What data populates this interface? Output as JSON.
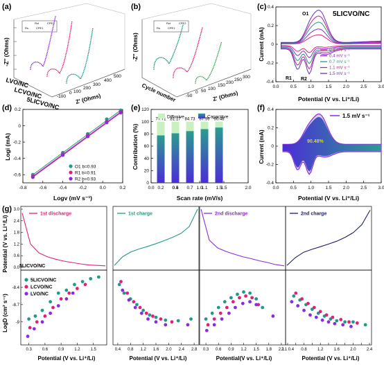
{
  "colors": {
    "pink": "#e0207a",
    "teal": "#1f9a8a",
    "purple": "#8a2be2",
    "navy": "#1c1c6b",
    "green": "#2ea84a",
    "diffusive": "#c8f0c0",
    "capacitive_top": "#2a9d8f",
    "capacitive_bottom": "#4b2dd6"
  },
  "panels": {
    "a": {
      "label": "(a)",
      "zlabel": "-Z'' (Ohms)",
      "xlabel": "Z' (Ohms)",
      "xticks": [
        "-100",
        "0",
        "100",
        "200",
        "300",
        "400",
        "500"
      ],
      "series": [
        "LVO/NC",
        "LCVO/NC",
        "5LICVO/NC"
      ],
      "circuit": [
        "Rs",
        "Rct",
        "CPE1",
        "CPE2"
      ]
    },
    "b": {
      "label": "(b)",
      "zlabel": "-Z'' (Ohms)",
      "xlabel": "Z' (Ohms)",
      "ylabel": "Cycle number",
      "xticks": [
        "-50",
        "0",
        "50",
        "100",
        "150",
        "200",
        "250",
        "300"
      ],
      "circuit": [
        "Rs",
        "Rct",
        "CPE1",
        "CPE2"
      ]
    },
    "c": {
      "label": "(c)",
      "tag": "5LICVO/NC",
      "ylabel": "Current (mA)",
      "xlabel": "Potential (V vs. Li⁺/Li)",
      "peaks": [
        "O1",
        "R1",
        "R2"
      ],
      "legend": [
        "0.2 mV s⁻¹",
        "0.4 mV s⁻¹",
        "0.7 mV s⁻¹",
        "1.1 mV s⁻¹",
        "1.5 mV s⁻¹"
      ]
    },
    "d": {
      "label": "(d)",
      "ylabel": "Logi (mA)",
      "xlabel": "Logv (mV s⁻¹)",
      "legend": [
        "O1  b=0.93",
        "R1  b=0.91",
        "R2  b=0.93"
      ]
    },
    "e": {
      "label": "(e)",
      "ylabel": "Contribution (%)",
      "xlabel": "Scan rate (mV/s)",
      "legend": [
        "Diffusive",
        "Capacitive"
      ]
    },
    "f": {
      "label": "(f)",
      "ylabel": "Current (mA)",
      "xlabel": "Potential (V vs. Li⁺/Li)",
      "legend": "1.5 mV s⁻¹",
      "percent": "90.48%"
    },
    "g": {
      "label": "(g)",
      "titles": [
        "1st discharge",
        "1st charge",
        "2nd discharge",
        "2nd charge"
      ],
      "top_ylabel": "Potential (V vs. Li⁺/Li)",
      "bottom_ylabel": "LogD (cm² s⁻¹)",
      "sample": "5LICVO/NC",
      "legend": [
        "5LICVO/NC",
        "LCVO/NC",
        "LVO/NC"
      ],
      "xlabels": [
        "Potential (V vs. Li⁺/Li)",
        "Potential (V vs. Li⁺/Li)",
        "Potential(V vs. Li⁺/Li)",
        "Potential (V vs. Li⁺/Li)"
      ]
    }
  },
  "chart_data": [
    {
      "type": "line",
      "panel": "c",
      "xlabel": "Potential (V vs. Li⁺/Li)",
      "ylabel": "Current (mA)",
      "xlim": [
        0.0,
        3.0
      ],
      "ylim": [
        -0.4,
        0.4
      ],
      "xticks": [
        0.0,
        0.5,
        1.0,
        1.5,
        2.0,
        2.5,
        3.0
      ],
      "yticks": [
        -0.4,
        -0.2,
        0.0,
        0.2,
        0.4
      ],
      "series": [
        {
          "name": "0.2 mV s⁻¹",
          "color": "#e0207a",
          "scale": 0.28
        },
        {
          "name": "0.4 mV s⁻¹",
          "color": "#8a2be2",
          "scale": 0.45
        },
        {
          "name": "0.7 mV s⁻¹",
          "color": "#1f9a8a",
          "scale": 0.65
        },
        {
          "name": "1.1 mV s⁻¹",
          "color": "#c02090",
          "scale": 0.83
        },
        {
          "name": "1.5 mV s⁻¹",
          "color": "#6a2cc8",
          "scale": 1.0
        }
      ]
    },
    {
      "type": "scatter",
      "panel": "d",
      "xlabel": "Logv (mV s⁻¹)",
      "ylabel": "Logi (mA)",
      "xlim": [
        -0.8,
        0.2
      ],
      "ylim": [
        -0.7,
        0.2
      ],
      "xticks": [
        -0.8,
        -0.6,
        -0.4,
        -0.2,
        0.0,
        0.2
      ],
      "yticks": [
        -0.6,
        -0.4,
        -0.2,
        0.0,
        0.2
      ],
      "x": [
        -0.7,
        -0.4,
        -0.15,
        0.04,
        0.18
      ],
      "series": [
        {
          "name": "O1  b=0.93",
          "color": "#1f9a8a",
          "values": [
            -0.6,
            -0.33,
            -0.1,
            0.08,
            0.19
          ]
        },
        {
          "name": "R1  b=0.91",
          "color": "#e0207a",
          "values": [
            -0.62,
            -0.35,
            -0.12,
            0.05,
            0.17
          ]
        },
        {
          "name": "R2  b=0.93",
          "color": "#8a2be2",
          "values": [
            -0.63,
            -0.36,
            -0.13,
            0.04,
            0.16
          ]
        }
      ]
    },
    {
      "type": "bar",
      "panel": "e",
      "xlabel": "Scan rate (mV/s)",
      "ylabel": "Contribution (%)",
      "categories": [
        "0.2",
        "0.4",
        "0.7",
        "1.1",
        "1.5"
      ],
      "xlim": [
        0.0,
        2.0
      ],
      "xticks": [
        0.0,
        0.5,
        1.0,
        1.5,
        2.0
      ],
      "ylim": [
        0,
        120
      ],
      "yticks": [
        0,
        20,
        40,
        60,
        80,
        100,
        120
      ],
      "series": [
        {
          "name": "Capacitive",
          "values": [
            77.71,
            81.17,
            84.73,
            87.99,
            90.48
          ]
        },
        {
          "name": "Diffusive",
          "values": [
            22.29,
            18.83,
            15.27,
            12.01,
            9.52
          ]
        }
      ],
      "data_labels": [
        "77.71",
        "81.17",
        "84.73",
        "87.99",
        "90.48"
      ]
    },
    {
      "type": "area",
      "panel": "f",
      "xlabel": "Potential (V vs. Li⁺/Li)",
      "ylabel": "Current (mA)",
      "xlim": [
        0.0,
        3.0
      ],
      "xticks": [
        0.0,
        0.5,
        1.0,
        1.5,
        2.0,
        2.5,
        3.0
      ],
      "ylim": [
        -0.4,
        0.4
      ],
      "yticks": [
        -0.4,
        -0.2,
        0.0,
        0.2,
        0.4
      ],
      "series": [
        {
          "name": "1.5 mV s⁻¹",
          "capacitive_percent": 90.48
        }
      ]
    },
    {
      "type": "line",
      "panel": "g-top",
      "ylabel": "Potential (V vs. Li⁺/Li)",
      "ylim": [
        0.0,
        3.0
      ],
      "yticks": [
        0.0,
        0.6,
        1.2,
        1.8,
        2.4,
        3.0
      ],
      "series": [
        {
          "name": "1st discharge",
          "color": "#e0207a",
          "values": [
            2.8,
            1.2,
            0.75,
            0.55,
            0.42,
            0.32,
            0.25,
            0.18,
            0.12,
            0.1,
            0.08
          ]
        },
        {
          "name": "1st charge",
          "color": "#1f9a8a",
          "values": [
            0.1,
            0.55,
            0.8,
            0.95,
            1.08,
            1.22,
            1.38,
            1.55,
            1.75,
            2.1,
            3.0
          ]
        },
        {
          "name": "2nd discharge",
          "color": "#8a2be2",
          "values": [
            3.0,
            1.4,
            1.0,
            0.82,
            0.68,
            0.55,
            0.45,
            0.34,
            0.25,
            0.14,
            0.08
          ]
        },
        {
          "name": "2nd charge",
          "color": "#1c1c6b",
          "values": [
            0.1,
            0.5,
            0.78,
            0.93,
            1.06,
            1.2,
            1.35,
            1.55,
            1.8,
            2.2,
            2.95
          ]
        }
      ]
    },
    {
      "type": "scatter",
      "panel": "g-bottom",
      "ylabel": "LogD (cm² s⁻¹)",
      "yticks": [
        -8.4,
        -8.7,
        -9.0
      ],
      "subplots": [
        {
          "title": "1st discharge",
          "xticks": [
            0.3,
            0.6,
            0.9,
            1.2,
            1.5
          ],
          "xlim": [
            0.15,
            1.75
          ],
          "series": [
            {
              "name": "5LICVO/NC",
              "x": [
                0.3,
                0.42,
                0.55,
                0.7,
                0.85,
                1.0,
                1.15,
                1.3,
                1.45,
                1.6
              ],
              "values": [
                -8.95,
                -8.9,
                -8.8,
                -8.65,
                -8.5,
                -8.45,
                -8.35,
                -8.3,
                -8.25,
                -8.22
              ]
            },
            {
              "name": "LCVO/NC",
              "x": [
                0.32,
                0.45,
                0.6,
                0.75,
                0.9,
                1.05,
                1.2,
                1.35
              ],
              "values": [
                -9.1,
                -9.0,
                -8.9,
                -8.75,
                -8.6,
                -8.5,
                -8.42,
                -8.35
              ]
            },
            {
              "name": "LVO/NC",
              "x": [
                0.28,
                0.4,
                0.55,
                0.7,
                0.85,
                1.0,
                1.12
              ],
              "values": [
                -9.25,
                -9.12,
                -9.0,
                -8.85,
                -8.72,
                -8.6,
                -8.5
              ]
            }
          ]
        },
        {
          "title": "1st charge",
          "xticks": [
            0.4,
            0.8,
            1.2,
            1.6,
            2.0,
            2.4,
            2.8
          ],
          "xlim": [
            0.25,
            2.95
          ],
          "series": [
            {
              "name": "5LICVO/NC",
              "x": [
                0.45,
                0.6,
                0.8,
                1.0,
                1.2,
                1.4,
                1.6,
                1.9,
                2.3,
                2.7
              ],
              "values": [
                -8.35,
                -8.5,
                -8.6,
                -8.7,
                -8.8,
                -8.88,
                -8.92,
                -8.97,
                -8.98,
                -8.95
              ]
            },
            {
              "name": "LCVO/NC",
              "x": [
                0.5,
                0.7,
                0.9,
                1.1,
                1.3,
                1.5,
                1.75,
                2.1
              ],
              "values": [
                -8.3,
                -8.5,
                -8.65,
                -8.75,
                -8.85,
                -8.9,
                -8.95,
                -9.0
              ]
            },
            {
              "name": "LVO/NC",
              "x": [
                0.55,
                0.75,
                0.95,
                1.15,
                1.35,
                1.6,
                1.9,
                2.6
              ],
              "values": [
                -8.45,
                -8.62,
                -8.75,
                -8.85,
                -8.95,
                -9.0,
                -9.05,
                -9.05
              ]
            }
          ]
        },
        {
          "title": "2nd discharge",
          "xticks": [
            0.3,
            0.6,
            0.9,
            1.2,
            1.5,
            1.8,
            2.1
          ],
          "xlim": [
            0.15,
            2.2
          ],
          "series": [
            {
              "name": "5LICVO/NC",
              "x": [
                0.3,
                0.45,
                0.6,
                0.75,
                0.9,
                1.05,
                1.2,
                1.35,
                1.5,
                1.65
              ],
              "values": [
                -8.95,
                -8.85,
                -8.75,
                -8.65,
                -8.58,
                -8.52,
                -8.48,
                -8.5,
                -8.6,
                -8.75
              ]
            },
            {
              "name": "LCVO/NC",
              "x": [
                0.35,
                0.5,
                0.65,
                0.8,
                0.95,
                1.1,
                1.25,
                1.4,
                1.55
              ],
              "values": [
                -9.05,
                -8.95,
                -8.85,
                -8.75,
                -8.65,
                -8.58,
                -8.55,
                -8.58,
                -8.7
              ]
            },
            {
              "name": "LVO/NC",
              "x": [
                0.32,
                0.5,
                0.68,
                0.85,
                1.0,
                1.18,
                1.35,
                1.5,
                1.9
              ],
              "values": [
                -9.15,
                -9.05,
                -8.95,
                -8.85,
                -8.75,
                -8.68,
                -8.65,
                -8.7,
                -8.9
              ]
            }
          ]
        },
        {
          "title": "2nd charge",
          "xticks": [
            0.4,
            0.6,
            0.8,
            1.0,
            1.2,
            1.4,
            1.6,
            1.8,
            2.0,
            2.2,
            2.4
          ],
          "xticklabels": [
            "2.1 0.4",
            "",
            "0.8",
            "",
            "1.2",
            "",
            "1.6",
            "",
            "2.0",
            "",
            "2.4"
          ],
          "xlim": [
            0.35,
            2.45
          ],
          "series": [
            {
              "name": "5LICVO/NC",
              "x": [
                0.55,
                0.7,
                0.85,
                1.0,
                1.15,
                1.3,
                1.45,
                1.6,
                1.8,
                2.0,
                2.3
              ],
              "values": [
                -8.55,
                -8.62,
                -8.7,
                -8.78,
                -8.85,
                -8.9,
                -8.95,
                -8.98,
                -9.0,
                -9.0,
                -9.05
              ]
            },
            {
              "name": "LCVO/NC",
              "x": [
                0.6,
                0.75,
                0.9,
                1.05,
                1.2,
                1.35,
                1.5,
                1.7,
                1.9,
                2.1
              ],
              "values": [
                -8.5,
                -8.6,
                -8.68,
                -8.75,
                -8.82,
                -8.88,
                -8.92,
                -8.96,
                -9.0,
                -9.02
              ]
            },
            {
              "name": "LVO/NC",
              "x": [
                0.5,
                0.65,
                0.8,
                0.95,
                1.1,
                1.25,
                1.4,
                1.55,
                1.75,
                1.95
              ],
              "values": [
                -8.65,
                -8.72,
                -8.8,
                -8.88,
                -8.92,
                -8.97,
                -9.0,
                -9.03,
                -9.05,
                -9.08
              ]
            }
          ]
        }
      ]
    }
  ]
}
